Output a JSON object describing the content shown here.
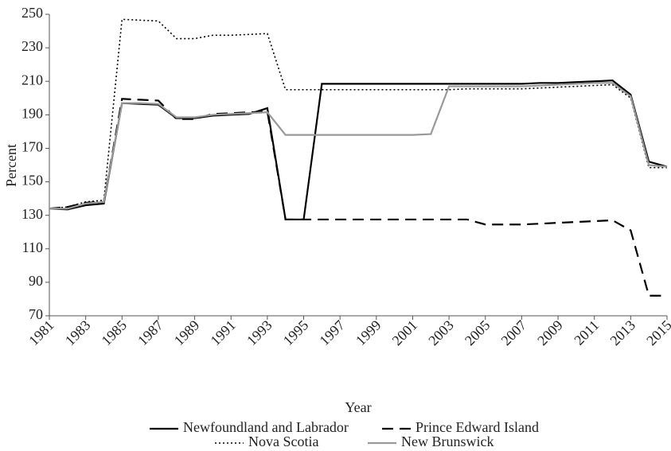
{
  "chart_data": {
    "type": "line",
    "x_label": "Year",
    "y_label": "Percent",
    "x": [
      1981,
      1982,
      1983,
      1984,
      1985,
      1986,
      1987,
      1988,
      1989,
      1990,
      1991,
      1992,
      1993,
      1994,
      1995,
      1996,
      1997,
      1998,
      1999,
      2000,
      2001,
      2002,
      2003,
      2004,
      2005,
      2006,
      2007,
      2008,
      2009,
      2010,
      2011,
      2012,
      2013,
      2014,
      2015
    ],
    "xlim": [
      1981,
      2015
    ],
    "xticks": [
      1981,
      1983,
      1985,
      1987,
      1989,
      1991,
      1993,
      1995,
      1997,
      1999,
      2001,
      2003,
      2005,
      2007,
      2009,
      2011,
      2013,
      2015
    ],
    "ylim": [
      70,
      250
    ],
    "yticks": [
      70,
      90,
      110,
      130,
      150,
      170,
      190,
      210,
      230,
      250
    ],
    "grid": false,
    "series": [
      {
        "name": "Newfoundland and Labrador",
        "color": "#000000",
        "dash": "solid",
        "values": [
          134,
          133.5,
          136,
          137,
          197,
          196.5,
          196,
          188,
          188,
          189.5,
          190,
          190.5,
          194,
          127.5,
          127.5,
          208.5,
          208.5,
          208.5,
          208.5,
          208.5,
          208.5,
          208.5,
          208.5,
          208.5,
          208.5,
          208.5,
          208.5,
          209,
          209,
          209.5,
          210,
          210.5,
          202,
          162,
          159
        ]
      },
      {
        "name": "Prince Edward Island",
        "color": "#000000",
        "dash": "dashed",
        "values": [
          134,
          135,
          137.5,
          138,
          199.5,
          199,
          198.5,
          187.5,
          187.5,
          190.5,
          191,
          191.5,
          192,
          127.5,
          127.5,
          127.5,
          127.5,
          127.5,
          127.5,
          127.5,
          127.5,
          127.5,
          127.5,
          127.5,
          124.5,
          124.5,
          124.5,
          125,
          125.5,
          126,
          126.5,
          127,
          121,
          82,
          82
        ]
      },
      {
        "name": "Nova Scotia",
        "color": "#000000",
        "dash": "dotted",
        "values": [
          134,
          135,
          138,
          139,
          247,
          246.5,
          246,
          235.5,
          235.5,
          237.5,
          237.5,
          238,
          238.5,
          205,
          205,
          205,
          205,
          205,
          205,
          205,
          205,
          205,
          205,
          205.5,
          205.5,
          205.5,
          205.5,
          206,
          206.5,
          207,
          207.5,
          208,
          200,
          158.5,
          158.5
        ]
      },
      {
        "name": "New Brunswick",
        "color": "#999999",
        "dash": "solid",
        "values": [
          134,
          134,
          137,
          138,
          197,
          197,
          196.5,
          188.5,
          188.5,
          190,
          190.5,
          191,
          191.5,
          178,
          178,
          178,
          178,
          178,
          178,
          178,
          178,
          178.5,
          207,
          207,
          207,
          207,
          207,
          207.5,
          208,
          208.5,
          209,
          209,
          201,
          160,
          159
        ]
      }
    ]
  }
}
